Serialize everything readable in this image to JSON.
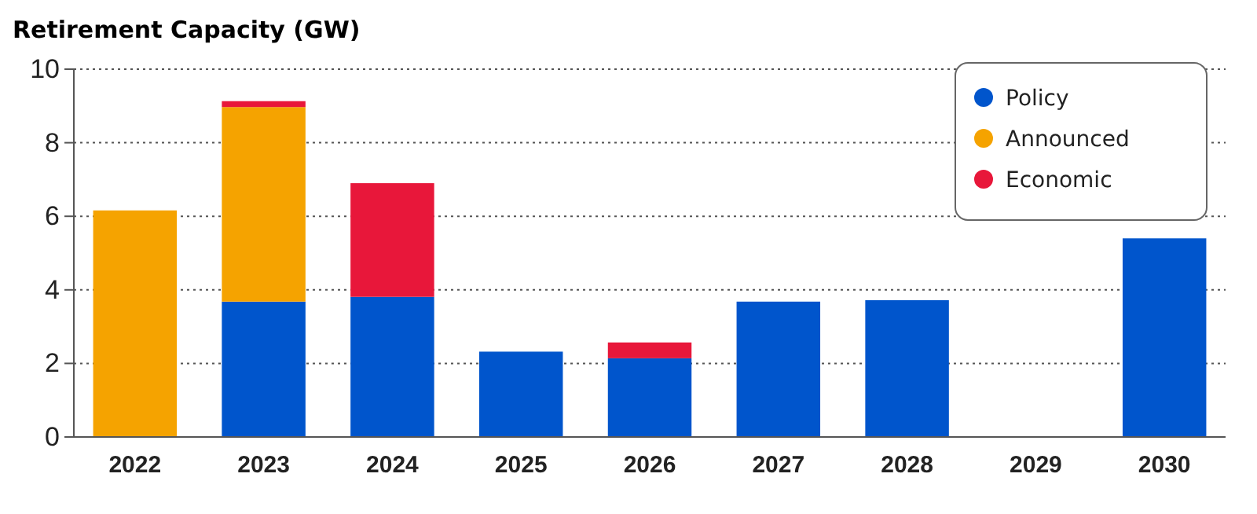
{
  "chart_data": {
    "type": "bar",
    "title": "Retirement Capacity (GW)",
    "stacked": true,
    "categories": [
      "2022",
      "2023",
      "2024",
      "2025",
      "2026",
      "2027",
      "2028",
      "2029",
      "2030"
    ],
    "series": [
      {
        "name": "Policy",
        "color": "#0055cc",
        "values": [
          0,
          3.68,
          3.81,
          2.32,
          2.14,
          3.68,
          3.72,
          0,
          5.4
        ]
      },
      {
        "name": "Announced",
        "color": "#f5a300",
        "values": [
          6.16,
          5.29,
          0,
          0,
          0,
          0,
          0,
          0,
          0
        ]
      },
      {
        "name": "Economic",
        "color": "#e8173a",
        "values": [
          0,
          0.16,
          3.09,
          0,
          0.43,
          0,
          0,
          0,
          0
        ]
      }
    ],
    "ylim": [
      0,
      10
    ],
    "yticks": [
      0,
      2,
      4,
      6,
      8,
      10
    ],
    "grid": "y",
    "legend": "top right"
  }
}
